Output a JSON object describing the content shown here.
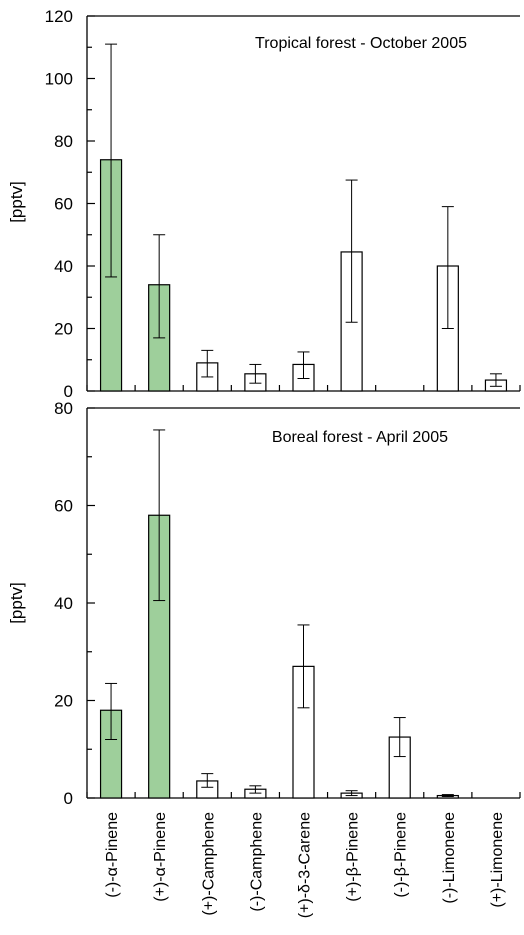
{
  "chart_data": [
    {
      "type": "bar",
      "title": "Tropical forest - October 2005",
      "ylabel": "[pptv]",
      "ylim": [
        0,
        120
      ],
      "yticks": [
        0,
        20,
        40,
        60,
        80,
        100,
        120
      ],
      "categories": [
        "(-)-α-Pinene",
        "(+)-α-Pinene",
        "(+)-Camphene",
        "(-)-Camphene",
        "(+)-δ-3-Carene",
        "(+)-β-Pinene",
        "(-)-β-Pinene",
        "(-)-Limonene",
        "(+)-Limonene"
      ],
      "values": [
        74,
        34,
        9,
        5.5,
        8.5,
        44.5,
        null,
        40,
        3.5
      ],
      "error_low": [
        36.5,
        17,
        4.5,
        2.5,
        4,
        22,
        null,
        20,
        1.5
      ],
      "error_high": [
        111,
        50,
        13,
        8.5,
        12.5,
        67.5,
        null,
        59,
        5.5
      ],
      "highlighted": [
        true,
        true,
        false,
        false,
        false,
        false,
        false,
        false,
        false
      ],
      "legend": "none"
    },
    {
      "type": "bar",
      "title": "Boreal forest - April 2005",
      "ylabel": "[pptv]",
      "ylim": [
        0,
        80
      ],
      "yticks": [
        0,
        20,
        40,
        60,
        80
      ],
      "categories": [
        "(-)-α-Pinene",
        "(+)-α-Pinene",
        "(+)-Camphene",
        "(-)-Camphene",
        "(+)-δ-3-Carene",
        "(+)-β-Pinene",
        "(-)-β-Pinene",
        "(-)-Limonene",
        "(+)-Limonene"
      ],
      "values": [
        18,
        58,
        3.5,
        1.8,
        27,
        1,
        12.5,
        0.5,
        null
      ],
      "error_low": [
        12,
        40.5,
        2.2,
        1,
        18.5,
        0.5,
        8.5,
        0.3,
        null
      ],
      "error_high": [
        23.5,
        75.5,
        5,
        2.5,
        35.5,
        1.5,
        16.5,
        0.7,
        null
      ],
      "highlighted": [
        true,
        true,
        false,
        false,
        false,
        false,
        false,
        false,
        false
      ],
      "legend": "none"
    }
  ],
  "colors": {
    "highlight_fill": "#9ecf9b",
    "plain_fill": "#ffffff",
    "stroke": "#000000"
  }
}
